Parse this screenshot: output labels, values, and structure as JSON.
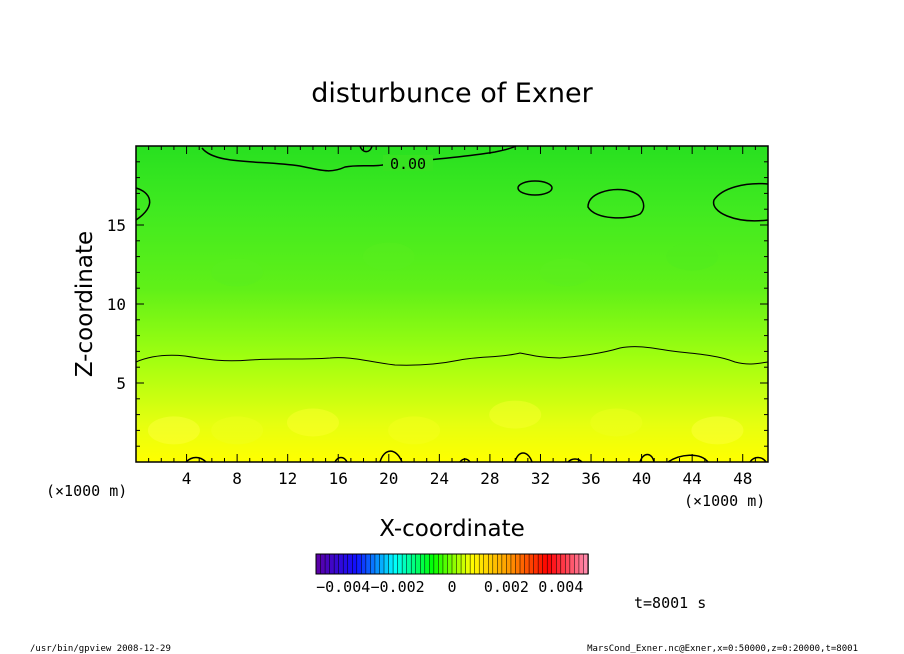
{
  "chart_data": {
    "type": "heatmap",
    "title": "disturbunce of Exner",
    "xlabel": "X-coordinate",
    "ylabel": "Z-coordinate",
    "x_unit": "(×1000 m)",
    "y_unit": "(×1000 m)",
    "xlim": [
      0,
      50
    ],
    "ylim": [
      0,
      20
    ],
    "x_ticks": [
      4,
      8,
      12,
      16,
      20,
      24,
      28,
      32,
      36,
      40,
      44,
      48
    ],
    "x_tick_labels": [
      "4",
      "8",
      "12",
      "16",
      "20",
      "24",
      "28",
      "32",
      "36",
      "40",
      "44",
      "48"
    ],
    "y_ticks": [
      5,
      10,
      15
    ],
    "y_tick_labels": [
      "5",
      "10",
      "15"
    ],
    "contour_label": "0.00",
    "colorbar": {
      "range": [
        -0.005,
        0.005
      ],
      "tick_values": [
        -0.004,
        -0.002,
        0,
        0.002,
        0.004
      ],
      "tick_labels": [
        "−0.004",
        "−0.002",
        "0",
        "0.002",
        "0.004"
      ],
      "colors": [
        "#5a00a8",
        "#1010ff",
        "#00ffff",
        "#00ff00",
        "#ffff00",
        "#ff9900",
        "#ff0000",
        "#ff88aa"
      ]
    },
    "field_description": [
      {
        "z": 0,
        "value": 0.0023
      },
      {
        "z": 4,
        "value": 0.0015
      },
      {
        "z": 6.6,
        "value": 0.0009
      },
      {
        "z": 10,
        "value": 0.0004
      },
      {
        "z": 15,
        "value": 0.0001
      },
      {
        "z": 20,
        "value": -0.0002
      }
    ]
  },
  "annotations": {
    "time": "t=8001 s",
    "footer_left": "/usr/bin/gpview   2008-12-29",
    "footer_right": "MarsCond_Exner.nc@Exner,x=0:50000,z=0:20000,t=8001"
  }
}
